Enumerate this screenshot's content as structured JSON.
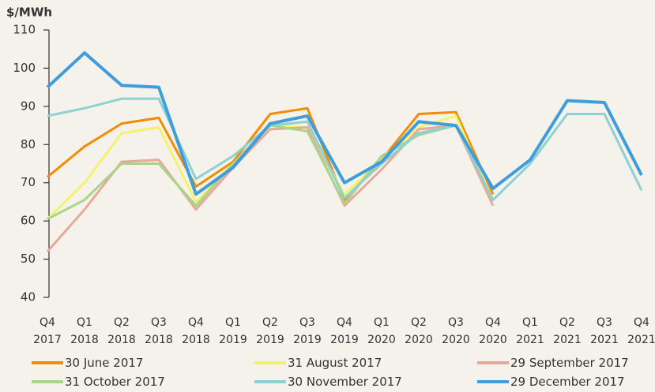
{
  "chart_data": {
    "type": "line",
    "y_axis_label": "$/MWh",
    "categories": [
      "Q4 2017",
      "Q1 2018",
      "Q2 2018",
      "Q3 2018",
      "Q4 2018",
      "Q1 2019",
      "Q2 2019",
      "Q3 2019",
      "Q4 2019",
      "Q1 2020",
      "Q2 2020",
      "Q3 2020",
      "Q4 2020",
      "Q1 2021",
      "Q2 2021",
      "Q3 2021",
      "Q4 2021"
    ],
    "ylim": [
      40,
      110
    ],
    "yticks": [
      40,
      50,
      60,
      70,
      80,
      90,
      100,
      110
    ],
    "legend": "bottom",
    "series": [
      {
        "name": "30 June 2017",
        "color": "#f28c00",
        "values": [
          71.5,
          79.5,
          85.5,
          87,
          69,
          75.5,
          88,
          89.5,
          65.5,
          76,
          88,
          88.5,
          67,
          null,
          null,
          null,
          null
        ]
      },
      {
        "name": "31 August 2017",
        "color": "#f5f26a",
        "values": [
          60.5,
          70,
          83,
          84.5,
          65,
          75,
          85,
          84.5,
          67,
          76,
          84.5,
          87.5,
          65.5,
          null,
          null,
          null,
          null
        ]
      },
      {
        "name": "29 September 2017",
        "color": "#e8a89a",
        "values": [
          52,
          63,
          75.5,
          76,
          63,
          74,
          84,
          84.5,
          64,
          73.5,
          84,
          85,
          64,
          null,
          null,
          null,
          null
        ]
      },
      {
        "name": "31 October 2017",
        "color": "#a9d58a",
        "values": [
          60.5,
          65.5,
          75,
          75,
          64,
          75,
          85,
          83.5,
          64.5,
          77,
          82.5,
          85,
          65.5,
          null,
          null,
          null,
          null
        ]
      },
      {
        "name": "30 November 2017",
        "color": "#8fd0d3",
        "values": [
          87.5,
          89.5,
          92,
          92,
          71,
          77,
          85,
          86,
          66,
          75,
          83,
          85,
          65.5,
          75,
          88,
          88,
          68
        ]
      },
      {
        "name": "29 December 2017",
        "color": "#3f9ddc",
        "values": [
          95,
          104,
          95.5,
          95,
          67,
          74,
          85.5,
          87.5,
          70,
          75.5,
          86,
          85,
          68.5,
          76,
          91.5,
          91,
          72
        ]
      }
    ]
  }
}
